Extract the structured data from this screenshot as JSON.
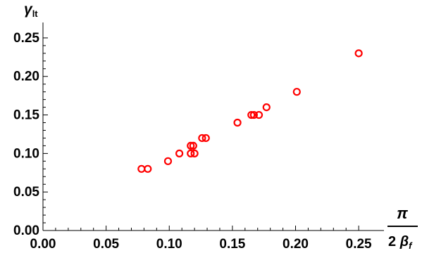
{
  "chart_data": {
    "type": "scatter",
    "title": "",
    "xlabel": {
      "numerator": "π",
      "denominator_prefix": "2 ",
      "denominator_symbol": "β",
      "denominator_sub": "f"
    },
    "ylabel": {
      "symbol": "γ",
      "sub": "lt"
    },
    "xlim": [
      0,
      0.27
    ],
    "ylim": [
      0,
      0.27
    ],
    "x_ticks": [
      0.0,
      0.05,
      0.1,
      0.15,
      0.2,
      0.25
    ],
    "x_tick_labels": [
      "0.00",
      "0.05",
      "0.10",
      "0.15",
      "0.20",
      "0.25"
    ],
    "y_ticks": [
      0.0,
      0.05,
      0.1,
      0.15,
      0.2,
      0.25
    ],
    "y_tick_labels": [
      "0.00",
      "0.05",
      "0.10",
      "0.15",
      "0.20",
      "0.25"
    ],
    "grid": false,
    "marker": "open-circle",
    "marker_color": "#ff0000",
    "series": [
      {
        "points": [
          {
            "x": 0.078,
            "y": 0.08
          },
          {
            "x": 0.083,
            "y": 0.08
          },
          {
            "x": 0.099,
            "y": 0.09
          },
          {
            "x": 0.108,
            "y": 0.1
          },
          {
            "x": 0.117,
            "y": 0.1
          },
          {
            "x": 0.12,
            "y": 0.1
          },
          {
            "x": 0.117,
            "y": 0.11
          },
          {
            "x": 0.119,
            "y": 0.11
          },
          {
            "x": 0.126,
            "y": 0.12
          },
          {
            "x": 0.129,
            "y": 0.12
          },
          {
            "x": 0.154,
            "y": 0.14
          },
          {
            "x": 0.165,
            "y": 0.15
          },
          {
            "x": 0.167,
            "y": 0.15
          },
          {
            "x": 0.171,
            "y": 0.15
          },
          {
            "x": 0.177,
            "y": 0.16
          },
          {
            "x": 0.201,
            "y": 0.18
          },
          {
            "x": 0.25,
            "y": 0.23
          }
        ]
      }
    ]
  }
}
